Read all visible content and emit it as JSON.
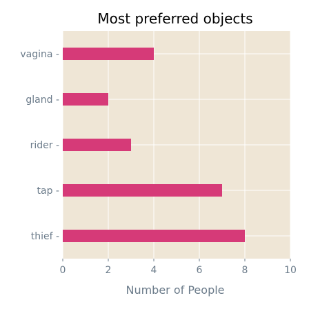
{
  "chart_data": {
    "type": "bar",
    "orientation": "horizontal",
    "title": "Most preferred objects",
    "xlabel": "Number of People",
    "ylabel": "",
    "categories": [
      "thief",
      "tap",
      "rider",
      "gland",
      "vagina"
    ],
    "values": [
      8,
      7,
      3,
      2,
      4
    ],
    "xlim": [
      0,
      10
    ],
    "xticks": [
      0,
      2,
      4,
      6,
      8,
      10
    ],
    "grid": true,
    "colors": {
      "bar": "#d63a78",
      "plot_background": "#efe6d6",
      "grid": "#ffffff",
      "tick_text": "#6b7b8a",
      "title": "#000000"
    }
  }
}
